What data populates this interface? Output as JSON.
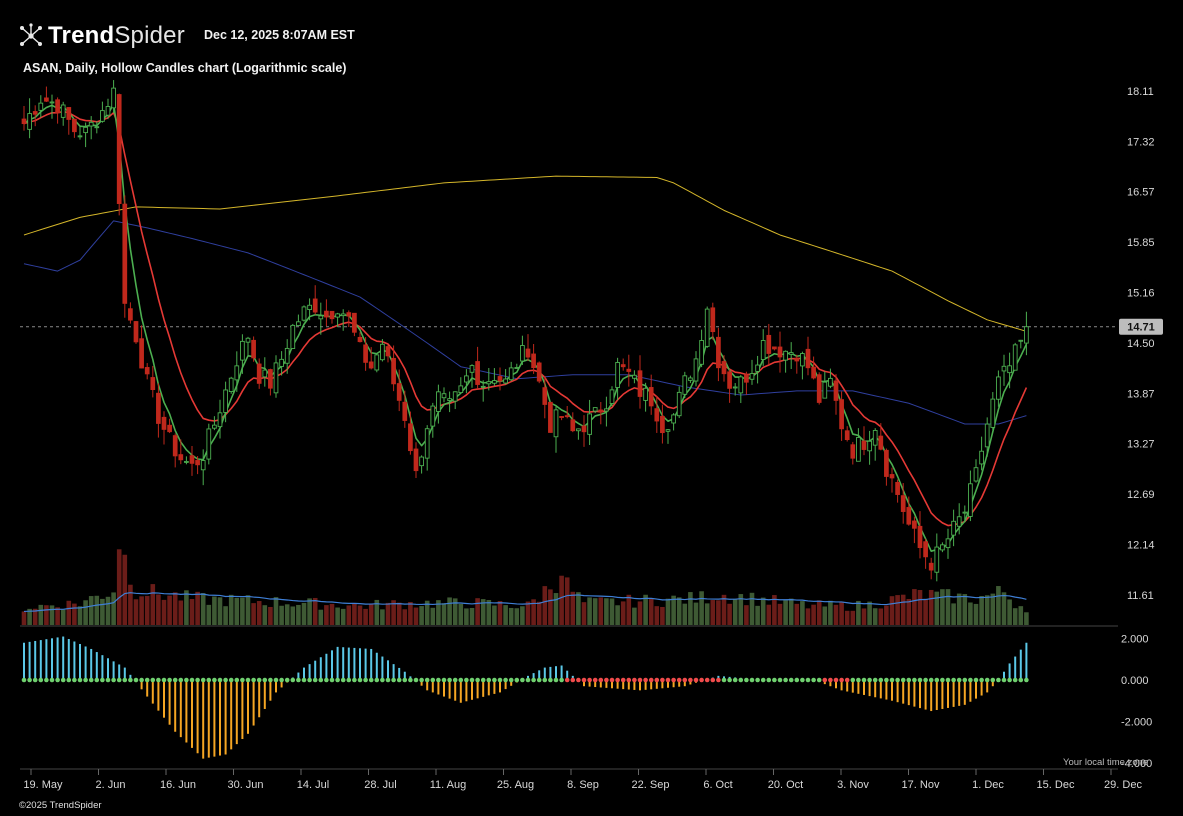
{
  "header": {
    "brand_bold": "Trend",
    "brand_light": "Spider",
    "logo_icon": "network-nodes-icon",
    "timestamp": "Dec 12, 2025 8:07AM EST",
    "chart_title": "ASAN, Daily, Hollow Candles chart (Logarithmic scale)"
  },
  "footer": {
    "copyright": "©2025 TrendSpider",
    "local_time": "Your local time zone"
  },
  "colors": {
    "up": "#4caf50",
    "down": "#c0281c",
    "ema_fast": "#4caf50",
    "ema_slow": "#e53935",
    "sma_200": "#d4b62a",
    "sma_50": "#2f3f9e",
    "volume_up": "#3e5a34",
    "volume_down": "#6b1d19",
    "volume_ma": "#3f7fd6",
    "osc_pos": "#5bc8e8",
    "osc_neg": "#f5a623",
    "dot_green": "#6fd06f",
    "dot_red": "#f04b4b",
    "price_badge": "#bdbdbd"
  },
  "chart_data": {
    "type": "candlestick",
    "symbol": "ASAN",
    "interval": "Daily",
    "scale": "log",
    "last_price": "14.71",
    "y_ticks": [
      "18.11",
      "17.32",
      "16.57",
      "15.85",
      "15.16",
      "14.50",
      "13.87",
      "13.27",
      "12.69",
      "12.14",
      "11.61"
    ],
    "x_ticks": [
      "19. May",
      "2. Jun",
      "16. Jun",
      "30. Jun",
      "14. Jul",
      "28. Jul",
      "11. Aug",
      "25. Aug",
      "8. Sep",
      "22. Sep",
      "6. Oct",
      "20. Oct",
      "3. Nov",
      "17. Nov",
      "1. Dec",
      "15. Dec",
      "29. Dec"
    ],
    "oscillator_ticks": [
      "2.000",
      "0.000",
      "-2.000",
      "-4.000"
    ],
    "close_keypoints": [
      [
        0,
        17.6
      ],
      [
        3,
        18.0
      ],
      [
        6,
        17.9
      ],
      [
        9,
        17.5
      ],
      [
        11,
        17.45
      ],
      [
        14,
        17.8
      ],
      [
        16,
        18.1
      ],
      [
        17,
        16.5
      ],
      [
        18,
        15.0
      ],
      [
        20,
        14.6
      ],
      [
        22,
        14.0
      ],
      [
        24,
        13.6
      ],
      [
        26,
        13.3
      ],
      [
        28,
        13.1
      ],
      [
        30,
        13.0
      ],
      [
        32,
        13.15
      ],
      [
        34,
        13.5
      ],
      [
        36,
        13.9
      ],
      [
        38,
        14.3
      ],
      [
        40,
        14.6
      ],
      [
        42,
        14.1
      ],
      [
        44,
        14.0
      ],
      [
        46,
        14.3
      ],
      [
        48,
        14.7
      ],
      [
        50,
        14.9
      ],
      [
        52,
        15.0
      ],
      [
        54,
        14.85
      ],
      [
        56,
        15.0
      ],
      [
        58,
        14.8
      ],
      [
        60,
        14.4
      ],
      [
        62,
        14.2
      ],
      [
        64,
        14.5
      ],
      [
        66,
        14.0
      ],
      [
        68,
        13.6
      ],
      [
        70,
        12.9
      ],
      [
        72,
        13.5
      ],
      [
        74,
        13.8
      ],
      [
        76,
        13.7
      ],
      [
        78,
        13.9
      ],
      [
        80,
        14.2
      ],
      [
        82,
        14.0
      ],
      [
        84,
        14.1
      ],
      [
        86,
        14.0
      ],
      [
        88,
        14.25
      ],
      [
        90,
        14.45
      ],
      [
        92,
        14.0
      ],
      [
        94,
        13.5
      ],
      [
        96,
        13.6
      ],
      [
        98,
        13.4
      ],
      [
        100,
        13.5
      ],
      [
        102,
        13.6
      ],
      [
        104,
        13.8
      ],
      [
        106,
        14.2
      ],
      [
        108,
        14.1
      ],
      [
        110,
        13.9
      ],
      [
        112,
        13.8
      ],
      [
        114,
        13.5
      ],
      [
        116,
        13.6
      ],
      [
        118,
        14.0
      ],
      [
        120,
        14.3
      ],
      [
        122,
        15.0
      ],
      [
        124,
        14.3
      ],
      [
        126,
        14.0
      ],
      [
        128,
        14.0
      ],
      [
        130,
        14.2
      ],
      [
        132,
        14.5
      ],
      [
        134,
        14.45
      ],
      [
        136,
        14.4
      ],
      [
        138,
        14.4
      ],
      [
        140,
        14.2
      ],
      [
        142,
        13.8
      ],
      [
        144,
        14.0
      ],
      [
        146,
        13.5
      ],
      [
        148,
        13.2
      ],
      [
        150,
        13.3
      ],
      [
        152,
        13.5
      ],
      [
        154,
        13.0
      ],
      [
        156,
        12.7
      ],
      [
        158,
        12.35
      ],
      [
        160,
        12.1
      ],
      [
        162,
        11.95
      ],
      [
        164,
        12.1
      ],
      [
        166,
        12.3
      ],
      [
        168,
        12.5
      ],
      [
        170,
        12.9
      ],
      [
        172,
        13.5
      ],
      [
        174,
        14.0
      ],
      [
        176,
        14.2
      ],
      [
        178,
        14.5
      ],
      [
        179,
        14.71
      ]
    ],
    "volume_keypoints": [
      [
        0,
        0.2
      ],
      [
        10,
        0.25
      ],
      [
        16,
        0.4
      ],
      [
        17,
        1.0
      ],
      [
        18,
        0.75
      ],
      [
        20,
        0.4
      ],
      [
        30,
        0.3
      ],
      [
        50,
        0.25
      ],
      [
        60,
        0.22
      ],
      [
        70,
        0.25
      ],
      [
        80,
        0.25
      ],
      [
        90,
        0.22
      ],
      [
        95,
        0.5
      ],
      [
        96,
        0.65
      ],
      [
        97,
        0.45
      ],
      [
        100,
        0.25
      ],
      [
        120,
        0.3
      ],
      [
        124,
        0.35
      ],
      [
        140,
        0.22
      ],
      [
        150,
        0.22
      ],
      [
        160,
        0.35
      ],
      [
        170,
        0.3
      ],
      [
        175,
        0.38
      ],
      [
        177,
        0.25
      ],
      [
        179,
        0.2
      ]
    ],
    "oscillator_keypoints": [
      [
        0,
        1.8
      ],
      [
        7,
        2.1
      ],
      [
        12,
        1.5
      ],
      [
        18,
        0.6
      ],
      [
        22,
        -0.8
      ],
      [
        27,
        -2.5
      ],
      [
        32,
        -3.8
      ],
      [
        36,
        -3.6
      ],
      [
        40,
        -2.6
      ],
      [
        45,
        -0.6
      ],
      [
        50,
        0.6
      ],
      [
        56,
        1.6
      ],
      [
        62,
        1.5
      ],
      [
        68,
        0.4
      ],
      [
        72,
        -0.5
      ],
      [
        78,
        -1.1
      ],
      [
        85,
        -0.6
      ],
      [
        90,
        0.2
      ],
      [
        93,
        0.6
      ],
      [
        96,
        0.7
      ],
      [
        98,
        0.2
      ],
      [
        100,
        -0.3
      ],
      [
        110,
        -0.5
      ],
      [
        118,
        -0.3
      ],
      [
        124,
        0.2
      ],
      [
        130,
        0.05
      ],
      [
        138,
        0.1
      ],
      [
        142,
        -0.1
      ],
      [
        146,
        -0.5
      ],
      [
        155,
        -1.0
      ],
      [
        162,
        -1.5
      ],
      [
        168,
        -1.2
      ],
      [
        172,
        -0.6
      ],
      [
        174,
        0.0
      ],
      [
        176,
        0.8
      ],
      [
        179,
        1.8
      ]
    ],
    "sma200_keypoints": [
      [
        0,
        15.95
      ],
      [
        10,
        16.2
      ],
      [
        20,
        16.35
      ],
      [
        35,
        16.32
      ],
      [
        55,
        16.5
      ],
      [
        75,
        16.7
      ],
      [
        95,
        16.8
      ],
      [
        113,
        16.78
      ],
      [
        116,
        16.7
      ],
      [
        125,
        16.3
      ],
      [
        135,
        15.95
      ],
      [
        145,
        15.7
      ],
      [
        155,
        15.45
      ],
      [
        165,
        15.05
      ],
      [
        172,
        14.8
      ],
      [
        179,
        14.65
      ]
    ],
    "sma50_keypoints": [
      [
        0,
        15.55
      ],
      [
        6,
        15.45
      ],
      [
        10,
        15.6
      ],
      [
        16,
        16.15
      ],
      [
        22,
        16.05
      ],
      [
        30,
        15.9
      ],
      [
        40,
        15.7
      ],
      [
        50,
        15.4
      ],
      [
        60,
        15.1
      ],
      [
        70,
        14.6
      ],
      [
        78,
        14.2
      ],
      [
        88,
        14.05
      ],
      [
        98,
        14.1
      ],
      [
        108,
        14.1
      ],
      [
        118,
        13.95
      ],
      [
        128,
        13.85
      ],
      [
        138,
        13.9
      ],
      [
        148,
        13.9
      ],
      [
        158,
        13.75
      ],
      [
        168,
        13.5
      ],
      [
        174,
        13.5
      ],
      [
        179,
        13.6
      ]
    ]
  }
}
